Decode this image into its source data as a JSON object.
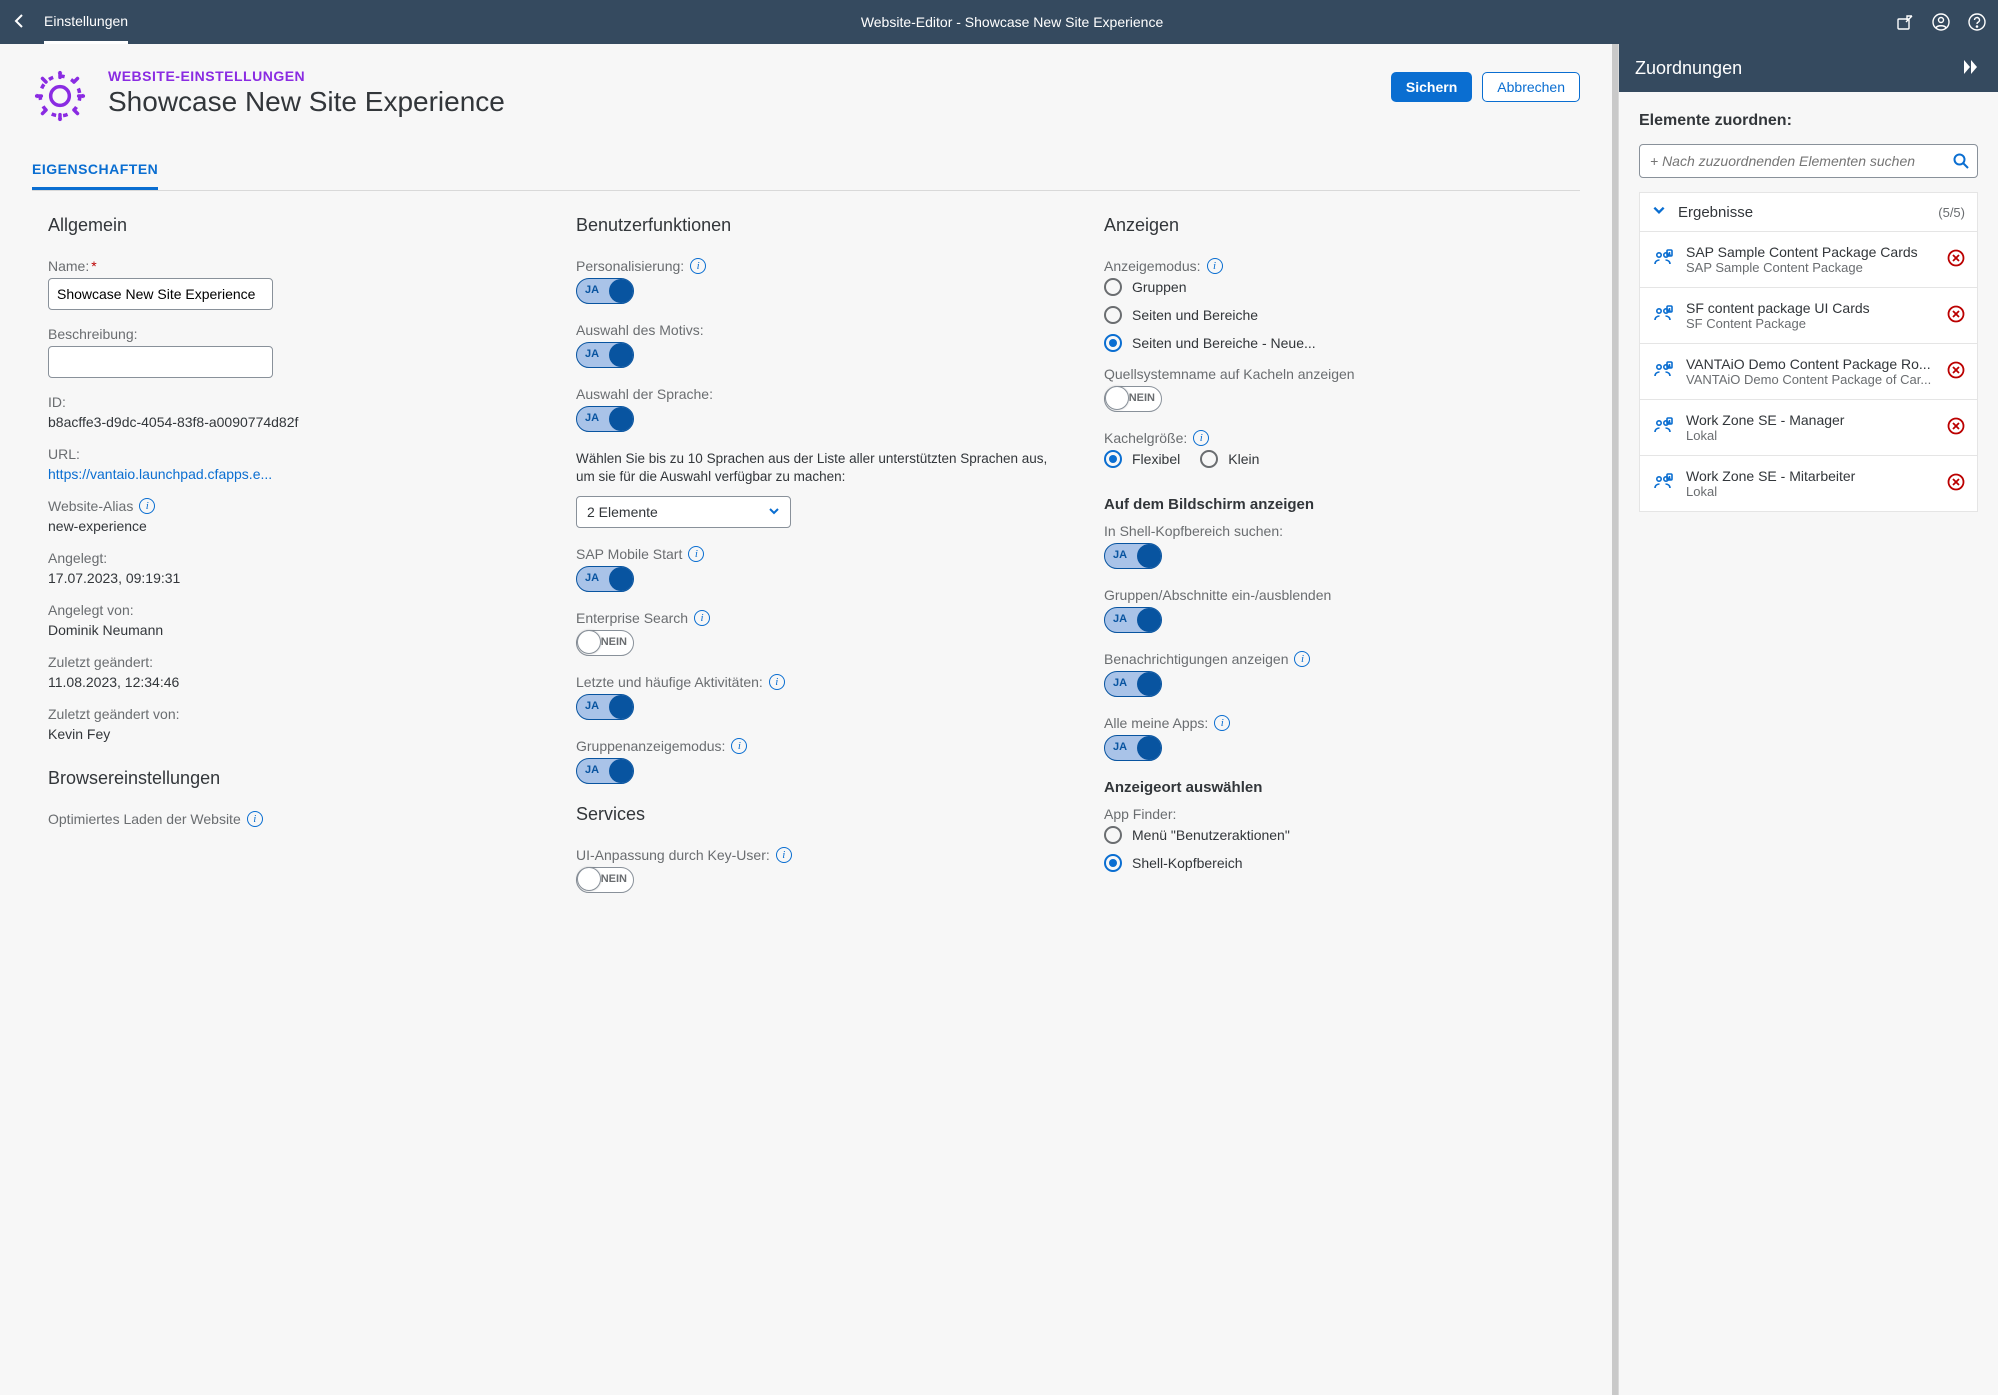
{
  "shell": {
    "nav_item": "Einstellungen",
    "title": "Website-Editor - Showcase New Site Experience"
  },
  "header": {
    "eyebrow": "WEBSITE-EINSTELLUNGEN",
    "title": "Showcase New Site Experience",
    "save": "Sichern",
    "cancel": "Abbrechen"
  },
  "tabs": {
    "properties": "EIGENSCHAFTEN"
  },
  "col1": {
    "section": "Allgemein",
    "name_label": "Name:",
    "name_value": "Showcase New Site Experience",
    "desc_label": "Beschreibung:",
    "desc_value": "",
    "id_label": "ID:",
    "id_value": "b8acffe3-d9dc-4054-83f8-a0090774d82f",
    "url_label": "URL:",
    "url_value": "https://vantaio.launchpad.cfapps.e...",
    "alias_label": "Website-Alias",
    "alias_value": "new-experience",
    "created_label": "Angelegt:",
    "created_value": "17.07.2023, 09:19:31",
    "created_by_label": "Angelegt von:",
    "created_by_value": "Dominik Neumann",
    "changed_label": "Zuletzt geändert:",
    "changed_value": "11.08.2023, 12:34:46",
    "changed_by_label": "Zuletzt geändert von:",
    "changed_by_value": "Kevin Fey",
    "browser_section": "Browsereinstellungen",
    "optim_label": "Optimiertes Laden der Website"
  },
  "col2": {
    "section": "Benutzerfunktionen",
    "toggle_on": "JA",
    "toggle_off": "NEIN",
    "personalization": "Personalisierung:",
    "theme_sel": "Auswahl des Motivs:",
    "lang_sel": "Auswahl der Sprache:",
    "lang_help": "Wählen Sie bis zu 10 Sprachen aus der Liste aller unterstützten Sprachen aus, um sie für die Auswahl verfügbar zu machen:",
    "lang_select_value": "2 Elemente",
    "mobile_start": "SAP Mobile Start",
    "enterprise_search": "Enterprise Search",
    "recent_freq": "Letzte und häufige Aktivitäten:",
    "group_display": "Gruppenanzeigemodus:",
    "services_section": "Services",
    "ui_adapt": "UI-Anpassung durch Key-User:"
  },
  "col3": {
    "section": "Anzeigen",
    "display_mode": "Anzeigemodus:",
    "dm_groups": "Gruppen",
    "dm_pages": "Seiten und Bereiche",
    "dm_pages_new": "Seiten und Bereiche - Neue...",
    "source_sys": "Quellsystemname auf Kacheln anzeigen",
    "tile_size": "Kachelgröße:",
    "ts_flex": "Flexibel",
    "ts_small": "Klein",
    "on_screen": "Auf dem Bildschirm anzeigen",
    "shell_search": "In Shell-Kopfbereich suchen:",
    "groups_toggle": "Gruppen/Abschnitte ein-/ausblenden",
    "notifications": "Benachrichtigungen anzeigen",
    "all_apps": "Alle meine Apps:",
    "display_location": "Anzeigeort auswählen",
    "app_finder": "App Finder:",
    "af_menu": "Menü \"Benutzeraktionen\"",
    "af_shell": "Shell-Kopfbereich"
  },
  "side": {
    "title": "Zuordnungen",
    "assign_label": "Elemente zuordnen:",
    "search_placeholder": "+ Nach zuzuordnenden Elementen suchen",
    "results_label": "Ergebnisse",
    "results_count": "(5/5)",
    "items": [
      {
        "title": "SAP Sample Content Package Cards",
        "sub": "SAP Sample Content Package"
      },
      {
        "title": "SF content package UI Cards",
        "sub": "SF Content Package"
      },
      {
        "title": "VANTAiO Demo Content Package Ro...",
        "sub": "VANTAiO Demo Content Package of Car..."
      },
      {
        "title": "Work Zone SE - Manager",
        "sub": "Lokal"
      },
      {
        "title": "Work Zone SE - Mitarbeiter",
        "sub": "Lokal"
      }
    ]
  },
  "colors": {
    "shell_bg": "#354a5f",
    "accent": "#0a6ed1",
    "accent_dark": "#0854a0",
    "purple": "#8a2be2",
    "danger": "#b00",
    "text": "#32363a",
    "muted": "#6a6d70",
    "bg": "#f7f7f7"
  }
}
